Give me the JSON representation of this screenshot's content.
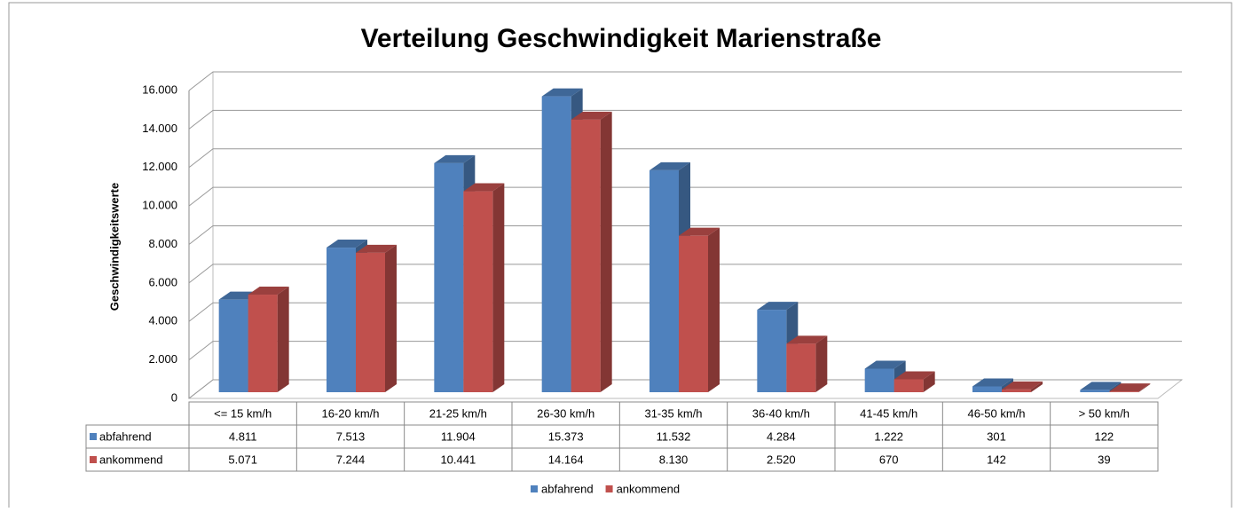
{
  "chart_data": {
    "type": "bar3d",
    "title": "Verteilung Geschwindigkeit Marienstraße",
    "y_label": "Geschwindigkeitswerte",
    "categories": [
      "<= 15 km/h",
      "16-20 km/h",
      "21-25 km/h",
      "26-30 km/h",
      "31-35 km/h",
      "36-40 km/h",
      "41-45 km/h",
      "46-50 km/h",
      "> 50 km/h"
    ],
    "series": [
      {
        "name": "abfahrend",
        "color": "#4f81bd",
        "values": [
          4811,
          7513,
          11904,
          15373,
          11532,
          4284,
          1222,
          301,
          122
        ],
        "value_labels": [
          "4.811",
          "7.513",
          "11.904",
          "15.373",
          "11.532",
          "4.284",
          "1.222",
          "301",
          "122"
        ]
      },
      {
        "name": "ankommend",
        "color": "#c0504d",
        "values": [
          5071,
          7244,
          10441,
          14164,
          8130,
          2520,
          670,
          142,
          39
        ],
        "value_labels": [
          "5.071",
          "7.244",
          "10.441",
          "14.164",
          "8.130",
          "2.520",
          "670",
          "142",
          "39"
        ]
      }
    ],
    "ylim": [
      0,
      16000
    ],
    "yticks": [
      0,
      {
        "value": 2000,
        "label": "2.000"
      },
      {
        "value": 4000,
        "label": "4.000"
      },
      {
        "value": 6000,
        "label": "6.000"
      },
      {
        "value": 8000,
        "label": "8.000"
      },
      {
        "value": 10000,
        "label": "10.000"
      },
      {
        "value": 12000,
        "label": "12.000"
      },
      {
        "value": 14000,
        "label": "14.000"
      },
      {
        "value": 16000,
        "label": "16.000"
      }
    ],
    "grid": true,
    "legend": "bottom"
  }
}
